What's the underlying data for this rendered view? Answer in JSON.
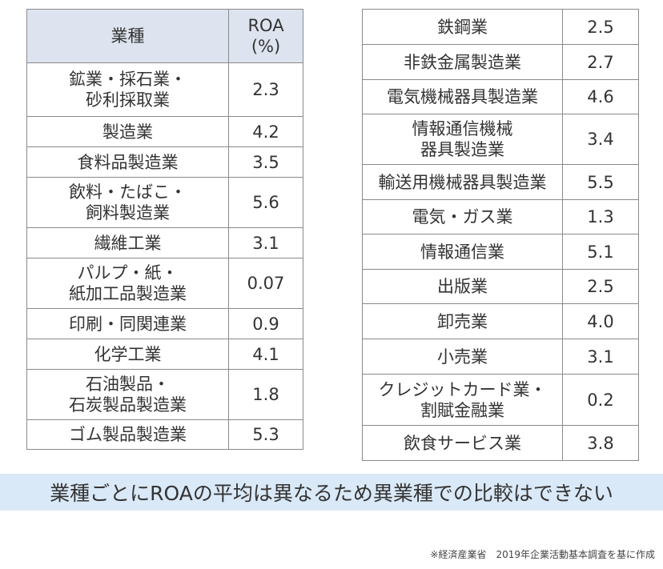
{
  "left_table": {
    "header": {
      "industry": "業種",
      "roa": "ROA\n(%)"
    },
    "rows": [
      {
        "industry": "鉱業・採石業・\n砂利採取業",
        "roa": "2.3"
      },
      {
        "industry": "製造業",
        "roa": "4.2"
      },
      {
        "industry": "食料品製造業",
        "roa": "3.5"
      },
      {
        "industry": "飲料・たばこ・\n飼料製造業",
        "roa": "5.6"
      },
      {
        "industry": "繊維工業",
        "roa": "3.1"
      },
      {
        "industry": "パルプ・紙・\n紙加工品製造業",
        "roa": "0.07"
      },
      {
        "industry": "印刷・同関連業",
        "roa": "0.9"
      },
      {
        "industry": "化学工業",
        "roa": "4.1"
      },
      {
        "industry": "石油製品・\n石炭製品製造業",
        "roa": "1.8"
      },
      {
        "industry": "ゴム製品製造業",
        "roa": "5.3"
      }
    ]
  },
  "right_table": {
    "rows": [
      {
        "industry": "鉄鋼業",
        "roa": "2.5"
      },
      {
        "industry": "非鉄金属製造業",
        "roa": "2.7"
      },
      {
        "industry": "電気機械器具製造業",
        "roa": "4.6"
      },
      {
        "industry": "情報通信機械\n器具製造業",
        "roa": "3.4"
      },
      {
        "industry": "輸送用機械器具製造業",
        "roa": "5.5"
      },
      {
        "industry": "電気・ガス業",
        "roa": "1.3"
      },
      {
        "industry": "情報通信業",
        "roa": "5.1"
      },
      {
        "industry": "出版業",
        "roa": "2.5"
      },
      {
        "industry": "卸売業",
        "roa": "4.0"
      },
      {
        "industry": "小売業",
        "roa": "3.1"
      },
      {
        "industry": "クレジットカード業・\n割賦金融業",
        "roa": "0.2"
      },
      {
        "industry": "飲食サービス業",
        "roa": "3.8"
      }
    ]
  },
  "banner": "業種ごとにROAの平均は異なるため異業種での比較はできない",
  "source": "※経済産業省　2019年企業活動基本調査を基に作成",
  "colors": {
    "header_bg": "#dde4ef",
    "banner_bg": "#dae9f7",
    "border": "#8a8a8a"
  }
}
